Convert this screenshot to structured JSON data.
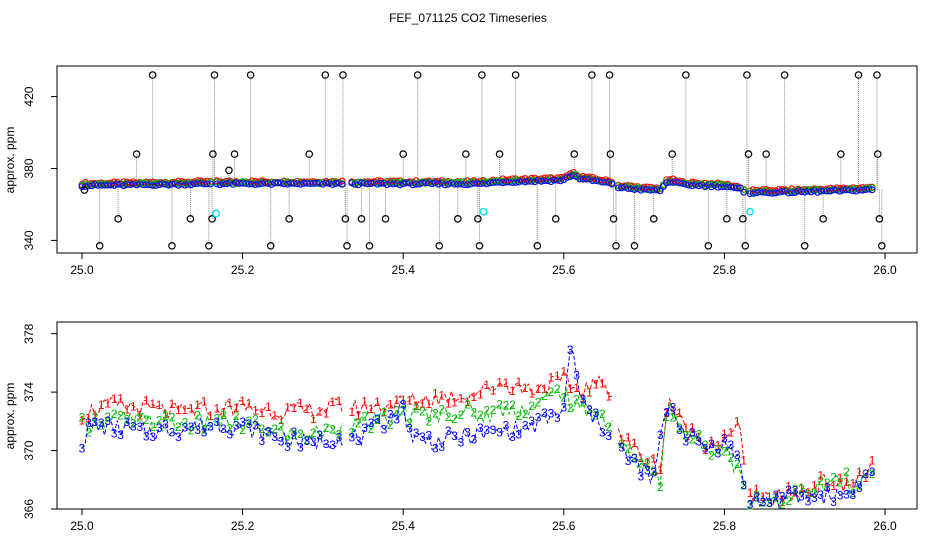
{
  "chart_data": [
    {
      "type": "scatter",
      "title": "FEF_071125  CO2 Timeseries",
      "xlabel": "",
      "ylabel": "approx. ppm",
      "xlim": [
        25.0,
        26.0
      ],
      "ylim": [
        333,
        437
      ],
      "x_ticks": [
        "25.0",
        "25.2",
        "25.4",
        "25.6",
        "25.8",
        "26.0"
      ],
      "y_ticks": [
        "340",
        "380",
        "420"
      ],
      "y_tick_values": [
        340,
        380,
        420
      ],
      "grid": false,
      "colors": {
        "series1": "#ff0000",
        "series2": "#00bb00",
        "series3": "#0000ff",
        "raw": "#000000",
        "flag": "#00e5ee"
      },
      "gaps": [
        [
          25.162,
          25.167
        ],
        [
          25.328,
          25.333
        ],
        [
          25.662,
          25.667
        ],
        [
          25.826,
          25.832
        ]
      ],
      "baseline": [
        [
          25.0,
          370.5
        ],
        [
          25.16,
          371.5
        ],
        [
          25.168,
          371.5
        ],
        [
          25.33,
          371.5
        ],
        [
          25.334,
          371.5
        ],
        [
          25.5,
          371.5
        ],
        [
          25.52,
          372.5
        ],
        [
          25.6,
          373.5
        ],
        [
          25.61,
          376.5
        ],
        [
          25.62,
          374.5
        ],
        [
          25.66,
          371.5
        ],
        [
          25.668,
          369.5
        ],
        [
          25.7,
          368.2
        ],
        [
          25.72,
          367.8
        ],
        [
          25.73,
          373
        ],
        [
          25.75,
          371
        ],
        [
          25.8,
          370
        ],
        [
          25.82,
          368.5
        ],
        [
          25.826,
          366.5
        ],
        [
          25.832,
          366.5
        ],
        [
          25.9,
          367
        ],
        [
          25.98,
          368.2
        ]
      ],
      "spikes": [
        {
          "x": 25.003,
          "y": 368
        },
        {
          "x": 25.022,
          "y": 337
        },
        {
          "x": 25.045,
          "y": 352
        },
        {
          "x": 25.068,
          "y": 388
        },
        {
          "x": 25.088,
          "y": 432
        },
        {
          "x": 25.112,
          "y": 337
        },
        {
          "x": 25.135,
          "y": 352
        },
        {
          "x": 25.158,
          "y": 337
        },
        {
          "x": 25.162,
          "y": 352
        },
        {
          "x": 25.163,
          "y": 388
        },
        {
          "x": 25.165,
          "y": 432
        },
        {
          "x": 25.183,
          "y": 379
        },
        {
          "x": 25.19,
          "y": 388
        },
        {
          "x": 25.21,
          "y": 432
        },
        {
          "x": 25.235,
          "y": 337
        },
        {
          "x": 25.258,
          "y": 352
        },
        {
          "x": 25.283,
          "y": 388
        },
        {
          "x": 25.303,
          "y": 432
        },
        {
          "x": 25.328,
          "y": 352
        },
        {
          "x": 25.33,
          "y": 337
        },
        {
          "x": 25.325,
          "y": 432
        },
        {
          "x": 25.348,
          "y": 352
        },
        {
          "x": 25.358,
          "y": 337
        },
        {
          "x": 25.378,
          "y": 352
        },
        {
          "x": 25.4,
          "y": 388
        },
        {
          "x": 25.418,
          "y": 432
        },
        {
          "x": 25.445,
          "y": 337
        },
        {
          "x": 25.468,
          "y": 352
        },
        {
          "x": 25.478,
          "y": 388
        },
        {
          "x": 25.493,
          "y": 352
        },
        {
          "x": 25.495,
          "y": 337
        },
        {
          "x": 25.498,
          "y": 432
        },
        {
          "x": 25.52,
          "y": 388
        },
        {
          "x": 25.54,
          "y": 432
        },
        {
          "x": 25.567,
          "y": 337
        },
        {
          "x": 25.59,
          "y": 352
        },
        {
          "x": 25.613,
          "y": 388
        },
        {
          "x": 25.635,
          "y": 432
        },
        {
          "x": 25.657,
          "y": 432
        },
        {
          "x": 25.658,
          "y": 388
        },
        {
          "x": 25.662,
          "y": 352
        },
        {
          "x": 25.665,
          "y": 337
        },
        {
          "x": 25.688,
          "y": 337
        },
        {
          "x": 25.712,
          "y": 352
        },
        {
          "x": 25.735,
          "y": 388
        },
        {
          "x": 25.752,
          "y": 432
        },
        {
          "x": 25.78,
          "y": 337
        },
        {
          "x": 25.803,
          "y": 352
        },
        {
          "x": 25.823,
          "y": 352
        },
        {
          "x": 25.826,
          "y": 337
        },
        {
          "x": 25.828,
          "y": 432
        },
        {
          "x": 25.83,
          "y": 388
        },
        {
          "x": 25.852,
          "y": 388
        },
        {
          "x": 25.875,
          "y": 432
        },
        {
          "x": 25.9,
          "y": 337
        },
        {
          "x": 25.923,
          "y": 352
        },
        {
          "x": 25.945,
          "y": 388
        },
        {
          "x": 25.967,
          "y": 432
        },
        {
          "x": 25.99,
          "y": 432
        },
        {
          "x": 25.991,
          "y": 388
        },
        {
          "x": 25.993,
          "y": 352
        },
        {
          "x": 25.996,
          "y": 337
        }
      ],
      "flagged_points": [
        {
          "x": 25.167,
          "y": 355
        },
        {
          "x": 25.5,
          "y": 356
        },
        {
          "x": 25.832,
          "y": 356
        }
      ]
    },
    {
      "type": "line",
      "title": "",
      "xlabel": "",
      "ylabel": "approx. ppm",
      "xlim": [
        25.0,
        26.0
      ],
      "ylim": [
        366,
        378.8
      ],
      "x_ticks": [
        "25.0",
        "25.2",
        "25.4",
        "25.6",
        "25.8",
        "26.0"
      ],
      "y_ticks": [
        "366",
        "370",
        "374",
        "378"
      ],
      "y_tick_values": [
        366,
        370,
        374,
        378
      ],
      "grid": false,
      "point_labels": [
        "1",
        "2",
        "3"
      ],
      "series": [
        {
          "name": "1",
          "color": "#ff0000",
          "points": [
            [
              25.0,
              372.6
            ],
            [
              25.04,
              373.1
            ],
            [
              25.08,
              372.9
            ],
            [
              25.12,
              372.6
            ],
            [
              25.16,
              372.9
            ],
            [
              25.2,
              373.0
            ],
            [
              25.24,
              372.7
            ],
            [
              25.28,
              372.7
            ],
            [
              25.32,
              373.0
            ],
            [
              25.35,
              372.9
            ],
            [
              25.4,
              373.3
            ],
            [
              25.44,
              373.6
            ],
            [
              25.48,
              373.8
            ],
            [
              25.5,
              374.1
            ],
            [
              25.52,
              374.6
            ],
            [
              25.56,
              374.2
            ],
            [
              25.6,
              374.8
            ],
            [
              25.62,
              374.0
            ],
            [
              25.64,
              374.6
            ],
            [
              25.66,
              374.2
            ],
            [
              25.67,
              371.0
            ],
            [
              25.7,
              369.5
            ],
            [
              25.72,
              368.8
            ],
            [
              25.73,
              373.6
            ],
            [
              25.75,
              371.5
            ],
            [
              25.78,
              370.5
            ],
            [
              25.8,
              370.7
            ],
            [
              25.82,
              371.6
            ],
            [
              25.83,
              367.0
            ],
            [
              25.85,
              366.6
            ],
            [
              25.9,
              367.2
            ],
            [
              25.93,
              368.0
            ],
            [
              25.95,
              367.4
            ],
            [
              25.98,
              368.8
            ]
          ]
        },
        {
          "name": "2",
          "color": "#00bb00",
          "points": [
            [
              25.0,
              371.7
            ],
            [
              25.04,
              372.2
            ],
            [
              25.08,
              372.0
            ],
            [
              25.12,
              371.8
            ],
            [
              25.16,
              371.9
            ],
            [
              25.2,
              371.8
            ],
            [
              25.24,
              371.3
            ],
            [
              25.28,
              371.0
            ],
            [
              25.32,
              371.6
            ],
            [
              25.35,
              371.8
            ],
            [
              25.4,
              372.4
            ],
            [
              25.44,
              372.5
            ],
            [
              25.48,
              372.7
            ],
            [
              25.5,
              372.3
            ],
            [
              25.52,
              372.8
            ],
            [
              25.56,
              372.9
            ],
            [
              25.6,
              374.2
            ],
            [
              25.61,
              373.0
            ],
            [
              25.64,
              372.6
            ],
            [
              25.66,
              371.8
            ],
            [
              25.67,
              370.3
            ],
            [
              25.7,
              368.8
            ],
            [
              25.72,
              368.0
            ],
            [
              25.73,
              373.5
            ],
            [
              25.75,
              371.1
            ],
            [
              25.78,
              370.2
            ],
            [
              25.8,
              370.4
            ],
            [
              25.82,
              368.2
            ],
            [
              25.83,
              366.8
            ],
            [
              25.85,
              366.6
            ],
            [
              25.9,
              367.0
            ],
            [
              25.95,
              368.2
            ],
            [
              25.96,
              367.0
            ],
            [
              25.98,
              368.3
            ]
          ]
        },
        {
          "name": "3",
          "color": "#0000ff",
          "points": [
            [
              25.0,
              370.6
            ],
            [
              25.01,
              371.6
            ],
            [
              25.04,
              371.6
            ],
            [
              25.08,
              371.3
            ],
            [
              25.12,
              371.5
            ],
            [
              25.16,
              371.8
            ],
            [
              25.2,
              371.6
            ],
            [
              25.24,
              371.0
            ],
            [
              25.28,
              370.5
            ],
            [
              25.32,
              370.9
            ],
            [
              25.35,
              370.9
            ],
            [
              25.4,
              373.0
            ],
            [
              25.41,
              371.0
            ],
            [
              25.44,
              370.6
            ],
            [
              25.48,
              371.0
            ],
            [
              25.52,
              371.3
            ],
            [
              25.56,
              371.6
            ],
            [
              25.6,
              372.8
            ],
            [
              25.61,
              377.6
            ],
            [
              25.62,
              373.5
            ],
            [
              25.64,
              372.0
            ],
            [
              25.66,
              371.2
            ],
            [
              25.67,
              370.0
            ],
            [
              25.7,
              368.6
            ],
            [
              25.71,
              367.7
            ],
            [
              25.73,
              373.5
            ],
            [
              25.75,
              371.2
            ],
            [
              25.78,
              370.2
            ],
            [
              25.8,
              370.5
            ],
            [
              25.82,
              369.2
            ],
            [
              25.83,
              366.5
            ],
            [
              25.85,
              366.5
            ],
            [
              25.9,
              366.9
            ],
            [
              25.95,
              367.0
            ],
            [
              25.98,
              368.4
            ]
          ]
        }
      ]
    }
  ]
}
